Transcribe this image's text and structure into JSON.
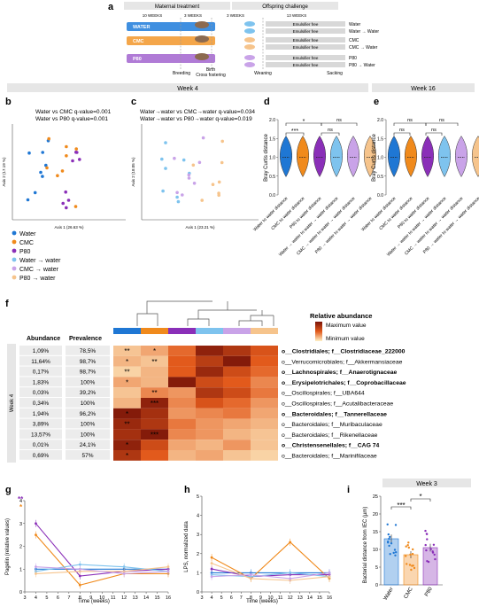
{
  "colors": {
    "water": "#1f77d4",
    "cmc": "#f08a1c",
    "p80": "#8a2fb8",
    "water_to_water": "#7ec3ee",
    "cmc_to_water": "#c9a3e8",
    "p80_to_water": "#f6c48c"
  },
  "panel_letters": [
    "a",
    "b",
    "c",
    "d",
    "e",
    "f",
    "g",
    "h",
    "i"
  ],
  "panel_a": {
    "maternal": "Maternal treatment",
    "offspring": "Offspring challenge",
    "w10": "10 WEEKS",
    "w3a": "3 WEEKS",
    "w3b": "3 WEEKS",
    "w13": "13 WEEKS",
    "groups": [
      "WATER",
      "CMC",
      "P80"
    ],
    "emulsifier": "Emulsifier free",
    "outcomes": [
      "Water",
      "Water → Water",
      "CMC",
      "CMC → Water",
      "P80",
      "P80 → Water"
    ],
    "breeding": "Breeding",
    "birth": "Birth",
    "cross": "Cross fostering",
    "weaning": "Weaning",
    "sacking": "Sacking"
  },
  "week4_banner": "Week 4",
  "week16_banner": "Week 16",
  "week3_banner": "Week 3",
  "panel_b": {
    "line1": "Water vs CMC q-value=0.001",
    "line2": "Water vs P80 q-value=0.001",
    "xaxis": "Axis 1 (26.63 %)",
    "yaxis": "Axis 2 (17.19 %)"
  },
  "panel_c": {
    "line1": "Water→water vs CMC→water q-value=0.034",
    "line2": "Water→water vs P80→water q-value=0.019",
    "xaxis": "Axis 1 (23.21 %)",
    "yaxis": "Axis 2 (18.05 %)"
  },
  "legend": [
    "Water",
    "CMC",
    "P80",
    "Water → water",
    "CMC → water",
    "P80 → water"
  ],
  "violin": {
    "ylabel": "Bray Curtis distance",
    "ticks": [
      "0.0",
      "0.5",
      "1.0",
      "1.5",
      "2.0"
    ],
    "labels_d": [
      "Water to water distance",
      "CMC to water distance",
      "P80 to water distance",
      "Water → water to water → water distance",
      "CMC → water to water → water distance",
      "P80 → water to water → water distance"
    ],
    "labels_e": [
      "Water to water distance",
      "CMC to water distance",
      "P80 to water distance",
      "Water → water to water → water distance",
      "CMC → water to water → water distance",
      "P80 → water to water → water distance"
    ],
    "sig_d": [
      "***",
      "*",
      "ns",
      "ns"
    ],
    "sig_e": [
      "ns",
      "ns",
      "ns",
      "ns"
    ]
  },
  "heatmap": {
    "legend_title": "Relative abundance",
    "max_label": "Maximum value",
    "min_label": "Minimum value",
    "col_abundance": "Abundance",
    "col_prevalence": "Prevalence",
    "side_label": "Week 4",
    "rows": [
      {
        "abundance": "1,09%",
        "prevalence": "78,5%",
        "taxon": "o__Clostridiales; f__Clostridiaceae_222000",
        "bold": true
      },
      {
        "abundance": "11,64%",
        "prevalence": "98,7%",
        "taxon": "o__Verrucomicrobiales; f__Akkermansiaceae",
        "bold": false
      },
      {
        "abundance": "0,17%",
        "prevalence": "98,7%",
        "taxon": "o__Lachnospirales; f__Anaerotignaceae",
        "bold": true
      },
      {
        "abundance": "1,83%",
        "prevalence": "100%",
        "taxon": "o__Erysipelotrichales; f__Coprobacillaceae",
        "bold": true
      },
      {
        "abundance": "0,03%",
        "prevalence": "39,2%",
        "taxon": "o__Oscillospirales; f__UBA644",
        "bold": false
      },
      {
        "abundance": "0,34%",
        "prevalence": "100%",
        "taxon": "o__Oscillospirales; f__Acutalibacteraceae",
        "bold": false
      },
      {
        "abundance": "1,94%",
        "prevalence": "96,2%",
        "taxon": "o__Bacteroidales; f__Tannerellaceae",
        "bold": true
      },
      {
        "abundance": "3,89%",
        "prevalence": "100%",
        "taxon": "o__Bacteroidales; f__Muribaculaceae",
        "bold": false
      },
      {
        "abundance": "13,57%",
        "prevalence": "100%",
        "taxon": "o__Bacteroidales; f__Rikenellaceae",
        "bold": false
      },
      {
        "abundance": "0,01%",
        "prevalence": "24,1%",
        "taxon": "o__Christensenellales; f__CAG 74",
        "bold": true
      },
      {
        "abundance": "0,69%",
        "prevalence": "57%",
        "taxon": "o__Bacteroidales; f__Marinifilaceae",
        "bold": false
      }
    ],
    "values": [
      [
        0.15,
        0.25,
        0.45,
        0.9,
        0.75,
        0.55
      ],
      [
        0.2,
        0.15,
        0.5,
        0.7,
        0.95,
        0.5
      ],
      [
        0.1,
        0.2,
        0.5,
        0.85,
        0.6,
        0.45
      ],
      [
        0.25,
        0.2,
        0.95,
        0.6,
        0.5,
        0.35
      ],
      [
        0.15,
        0.35,
        0.3,
        0.75,
        0.6,
        0.4
      ],
      [
        0.2,
        0.9,
        0.35,
        0.55,
        0.45,
        0.3
      ],
      [
        0.95,
        0.8,
        0.3,
        0.35,
        0.4,
        0.25
      ],
      [
        0.85,
        0.75,
        0.4,
        0.3,
        0.25,
        0.2
      ],
      [
        0.8,
        0.95,
        0.35,
        0.3,
        0.2,
        0.15
      ],
      [
        0.9,
        0.6,
        0.25,
        0.2,
        0.3,
        0.15
      ],
      [
        0.75,
        0.5,
        0.2,
        0.25,
        0.15,
        0.1
      ]
    ],
    "stars": [
      [
        "**",
        "*",
        "",
        "",
        "",
        ""
      ],
      [
        "*",
        "**",
        "",
        "",
        "",
        ""
      ],
      [
        "**",
        "",
        "",
        "",
        "",
        ""
      ],
      [
        "*",
        "",
        "",
        "",
        "",
        ""
      ],
      [
        "",
        "**",
        "",
        "",
        "",
        ""
      ],
      [
        "",
        "***",
        "",
        "",
        "",
        ""
      ],
      [
        "*",
        "",
        "",
        "",
        "",
        ""
      ],
      [
        "**",
        "",
        "",
        "",
        "",
        ""
      ],
      [
        "",
        "***",
        "",
        "",
        "",
        ""
      ],
      [
        "*",
        "",
        "",
        "",
        "",
        ""
      ],
      [
        "*",
        "",
        "",
        "",
        "",
        ""
      ]
    ]
  },
  "panel_g": {
    "ylabel": "Pagelin (relative values)",
    "xlabel": "Time (weeks)",
    "sig": [
      "**",
      "*"
    ]
  },
  "panel_h": {
    "ylabel": "LPS, normalized data",
    "xlabel": "Time (weeks)"
  },
  "panel_i": {
    "ylabel": "Bacterial distance from IEC (µm)",
    "categories": [
      "Water",
      "CMC",
      "P80"
    ],
    "sig": [
      "***",
      "*"
    ]
  },
  "chart_data": [
    {
      "type": "line",
      "panel": "g",
      "x": [
        4,
        8,
        12,
        16
      ],
      "ylim": [
        0,
        4
      ],
      "xlim": [
        3,
        16
      ],
      "yticks": [
        "0",
        "1",
        "2",
        "3",
        "4"
      ],
      "xticks": [
        "3",
        "4",
        "5",
        "6",
        "7",
        "8",
        "9",
        "10",
        "11",
        "12",
        "13",
        "14",
        "15",
        "16"
      ],
      "series": [
        {
          "color": "#1f77d4",
          "values": [
            1.0,
            1.0,
            1.0,
            1.0
          ]
        },
        {
          "color": "#f08a1c",
          "values": [
            2.5,
            0.3,
            0.8,
            0.8
          ]
        },
        {
          "color": "#8a2fb8",
          "values": [
            3.0,
            0.7,
            0.9,
            1.0
          ]
        },
        {
          "color": "#7ec3ee",
          "values": [
            0.9,
            1.2,
            1.1,
            0.9
          ]
        },
        {
          "color": "#f6c48c",
          "values": [
            0.8,
            0.9,
            0.9,
            1.1
          ]
        },
        {
          "color": "#c9a3e8",
          "values": [
            1.1,
            1.0,
            0.8,
            0.9
          ]
        }
      ]
    },
    {
      "type": "line",
      "panel": "h",
      "x": [
        4,
        8,
        12,
        16
      ],
      "ylim": [
        0,
        5
      ],
      "xlim": [
        3,
        16
      ],
      "yticks": [
        "0",
        "1",
        "2",
        "3",
        "4",
        "5"
      ],
      "xticks": [
        "3",
        "4",
        "5",
        "6",
        "7",
        "8",
        "9",
        "10",
        "11",
        "12",
        "13",
        "14",
        "15",
        "16"
      ],
      "series": [
        {
          "color": "#1f77d4",
          "values": [
            1.0,
            1.0,
            1.0,
            1.0
          ]
        },
        {
          "color": "#f08a1c",
          "values": [
            1.8,
            0.7,
            2.6,
            0.7
          ]
        },
        {
          "color": "#8a2fb8",
          "values": [
            1.2,
            0.8,
            0.9,
            0.9
          ]
        },
        {
          "color": "#7ec3ee",
          "values": [
            0.9,
            0.8,
            1.0,
            0.8
          ]
        },
        {
          "color": "#f6c48c",
          "values": [
            1.5,
            0.7,
            0.6,
            0.8
          ]
        },
        {
          "color": "#c9a3e8",
          "values": [
            0.8,
            0.9,
            0.7,
            1.0
          ]
        }
      ]
    },
    {
      "type": "bar",
      "panel": "i",
      "categories": [
        "Water",
        "CMC",
        "P80"
      ],
      "values": [
        13,
        8.5,
        10.5
      ],
      "errors": [
        1.2,
        1.0,
        1.1
      ],
      "ylim": [
        0,
        25
      ],
      "yticks": [
        "0",
        "5",
        "10",
        "15",
        "20",
        "25"
      ],
      "colors": [
        "#1f77d4",
        "#f08a1c",
        "#8a2fb8"
      ]
    }
  ]
}
